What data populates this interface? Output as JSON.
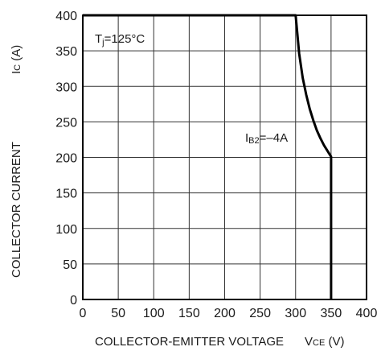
{
  "chart_data": {
    "type": "line",
    "xlabel": "COLLECTOR-EMITTER VOLTAGE",
    "xlabel_symbol": {
      "main": "V",
      "sub": "CE",
      "unit": " (V)"
    },
    "ylabel": "COLLECTOR CURRENT",
    "ylabel_symbol": {
      "main": "I",
      "sub": "C",
      "unit": " (A)"
    },
    "xlim": [
      0,
      400
    ],
    "ylim": [
      0,
      400
    ],
    "x_ticks": [
      0,
      50,
      100,
      150,
      200,
      250,
      300,
      350,
      400
    ],
    "y_ticks": [
      0,
      50,
      100,
      150,
      200,
      250,
      300,
      350,
      400
    ],
    "grid": true,
    "annotations": {
      "temperature": {
        "prefix": "T",
        "sub": "j",
        "value": "=125°C"
      },
      "curve_label": {
        "prefix": "I",
        "sub": "B2",
        "value": "=–4A"
      }
    },
    "series": [
      {
        "x": [
          0,
          300,
          305,
          310,
          315,
          320,
          325,
          330,
          335,
          340,
          345,
          350,
          350
        ],
        "y": [
          400,
          400,
          346,
          312,
          288,
          268,
          252,
          238,
          227,
          217,
          209,
          201,
          0
        ]
      }
    ]
  }
}
